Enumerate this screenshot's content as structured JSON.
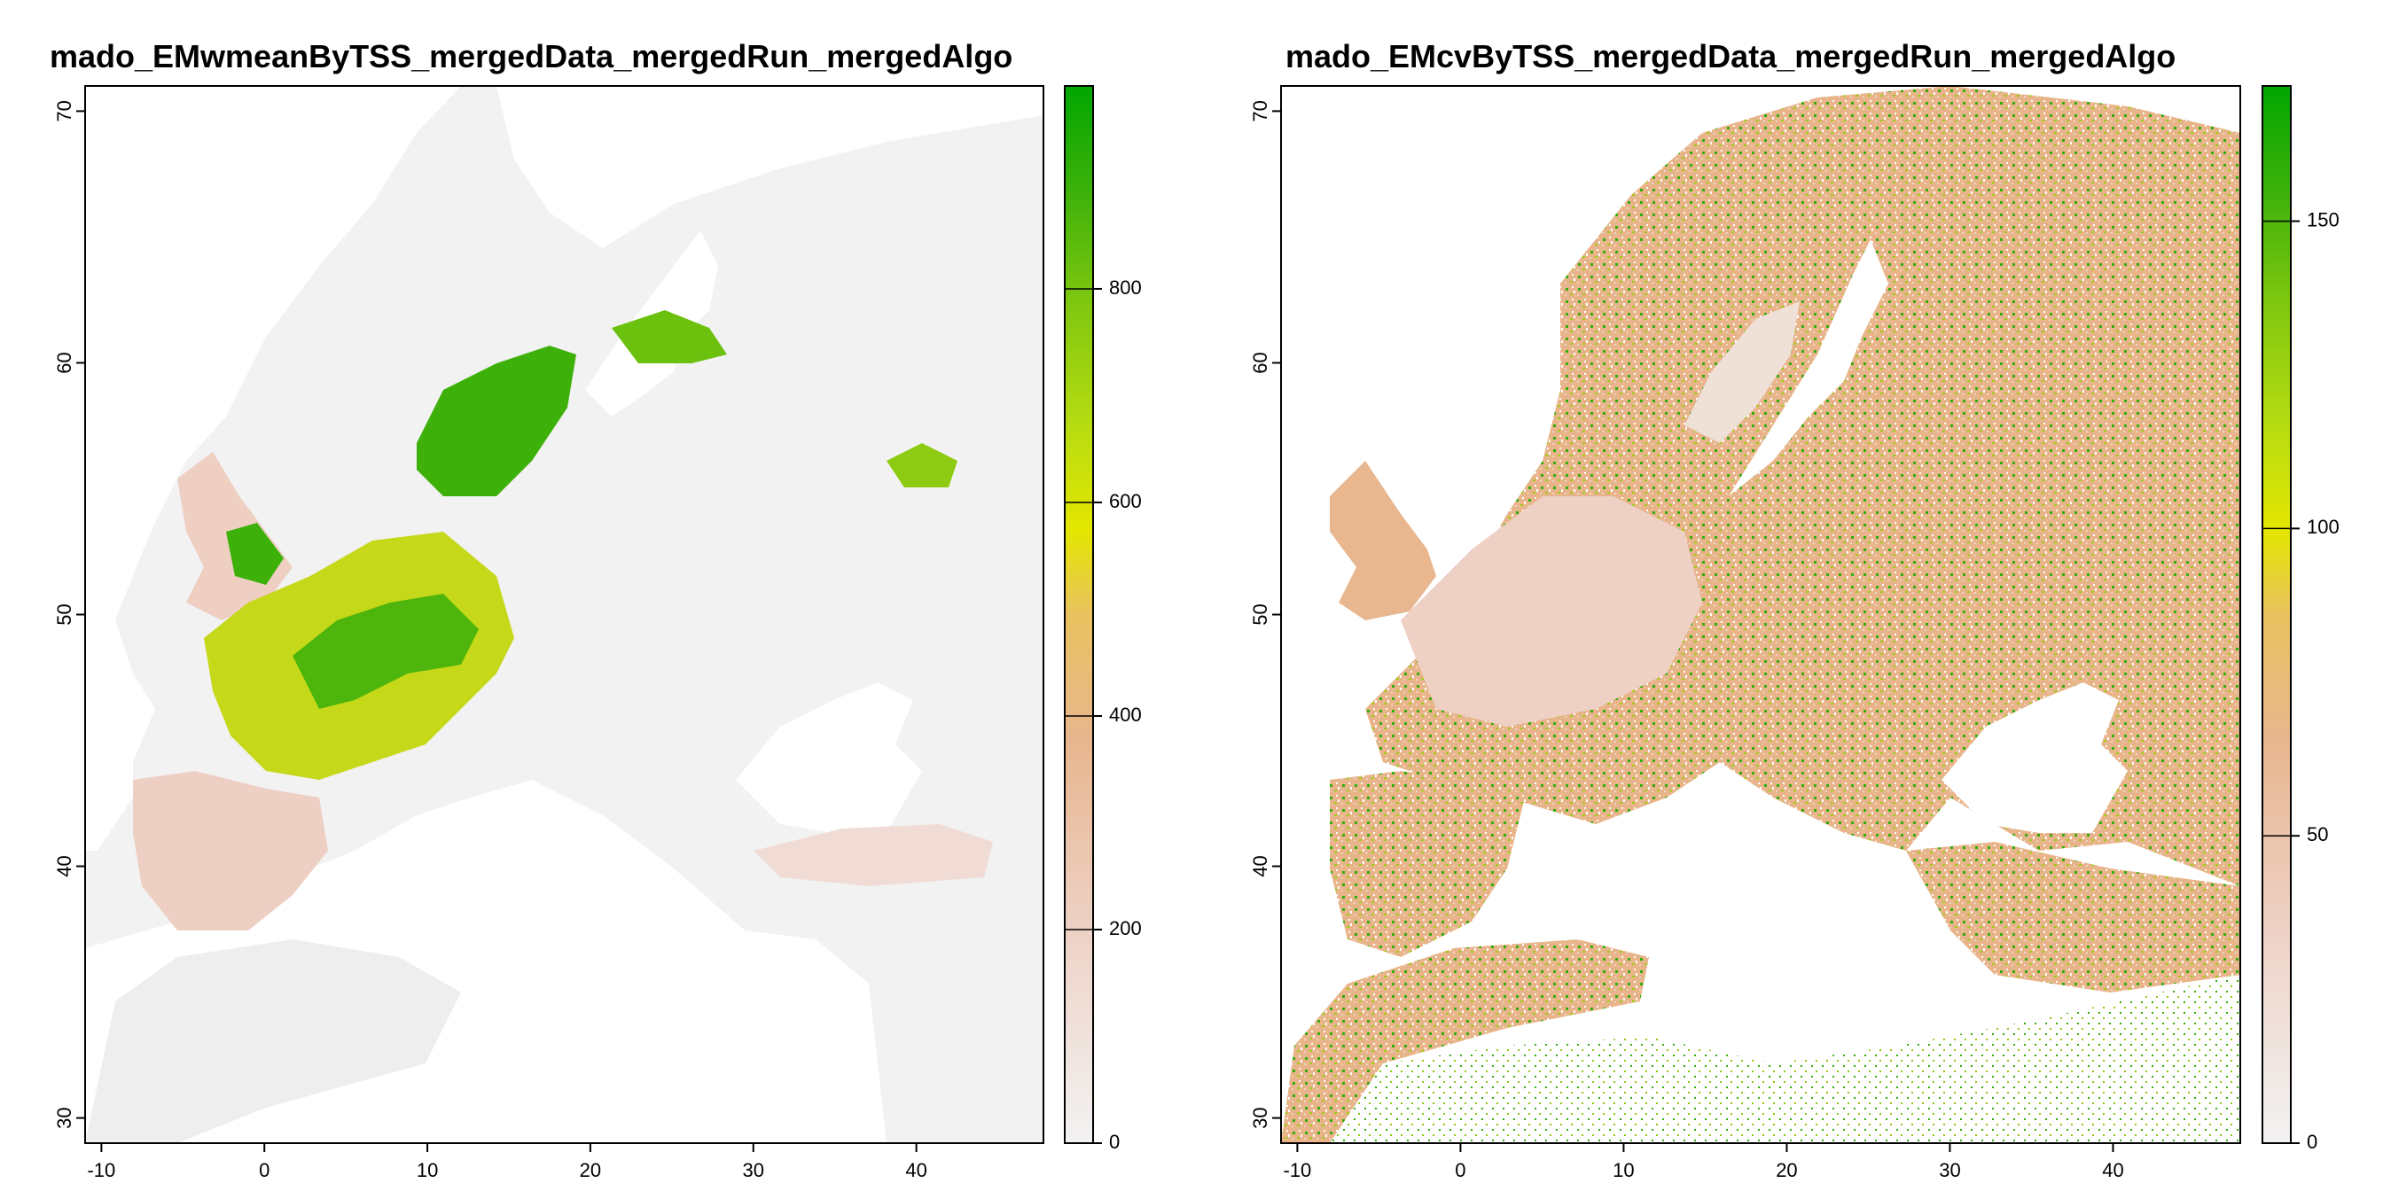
{
  "colors": {
    "background": "#ffffff",
    "frame": "#000000",
    "no_data": "#ffffff",
    "scale": [
      "#f2f2f2",
      "#eed2c6",
      "#e7b68f",
      "#e9c25f",
      "#e4e600",
      "#b6dc12",
      "#7cc60f",
      "#3db10a",
      "#00a600"
    ]
  },
  "panels": [
    {
      "title": "mado_EMwmeanByTSS_mergedData_mergedRun_mergedAlgo",
      "x_ticks": [
        "-10",
        "0",
        "10",
        "20",
        "30",
        "40"
      ],
      "y_ticks": [
        "30",
        "40",
        "50",
        "60",
        "70"
      ],
      "legend_ticks": [
        "0",
        "200",
        "400",
        "600",
        "800"
      ],
      "legend_values": [
        0,
        200,
        400,
        600,
        800
      ],
      "legend_range": [
        0,
        990
      ]
    },
    {
      "title": "mado_EMcvByTSS_mergedData_mergedRun_mergedAlgo",
      "x_ticks": [
        "-10",
        "0",
        "10",
        "20",
        "30",
        "40"
      ],
      "y_ticks": [
        "30",
        "40",
        "50",
        "60",
        "70"
      ],
      "legend_ticks": [
        "0",
        "50",
        "100",
        "150"
      ],
      "legend_values": [
        0,
        50,
        100,
        150
      ],
      "legend_range": [
        0,
        172
      ]
    }
  ]
}
